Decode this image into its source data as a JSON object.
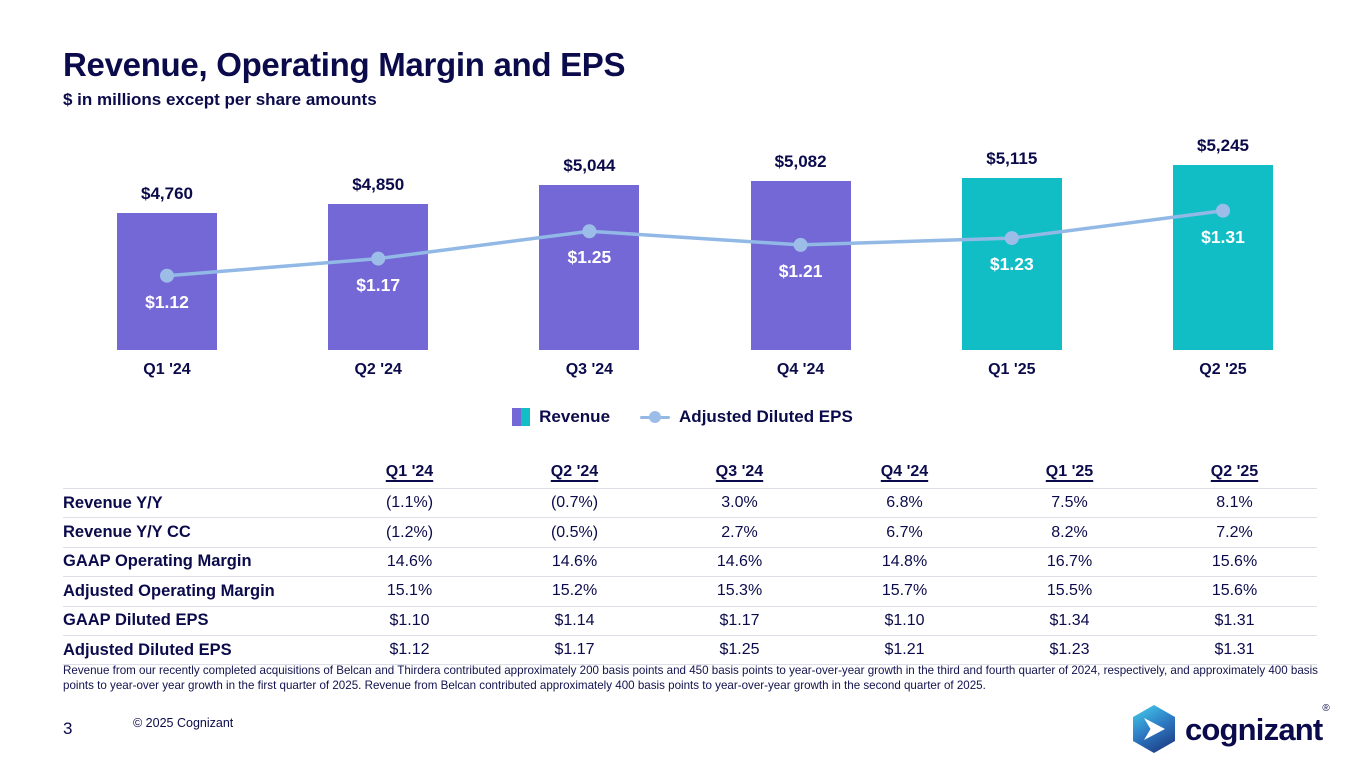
{
  "slide": {
    "title": "Revenue, Operating Margin and EPS",
    "subtitle": "$ in millions except per share amounts",
    "page_number": "3",
    "copyright": "© 2025 Cognizant",
    "footnote": "Revenue from our recently completed acquisitions of Belcan and Thirdera contributed approximately 200 basis points and 450 basis points to year-over-year growth in the third and fourth quarter of 2024, respectively, and approximately 400 basis points to year-over year growth in the first quarter of 2025.  Revenue from Belcan contributed approximately 400 basis points to year-over-year growth in the second quarter of 2025.",
    "logo_text": "cognizant",
    "logo_reg": "®"
  },
  "colors": {
    "navy": "#0b0b4b",
    "purple": "#7468d6",
    "teal": "#12bec6",
    "line": "#92b9e6",
    "dot": "#9dbde9"
  },
  "chart_data": {
    "type": "bar",
    "subtype": "bar+line combo",
    "categories": [
      "Q1 '24",
      "Q2 '24",
      "Q3 '24",
      "Q4 '24",
      "Q1 '25",
      "Q2 '25"
    ],
    "series": [
      {
        "name": "Revenue",
        "type": "bar",
        "values": [
          4760,
          4850,
          5044,
          5082,
          5115,
          5245
        ],
        "labels": [
          "$4,760",
          "$4,850",
          "$5,044",
          "$5,082",
          "$5,115",
          "$5,245"
        ],
        "colors": [
          "#7468d6",
          "#7468d6",
          "#7468d6",
          "#7468d6",
          "#12bec6",
          "#12bec6"
        ]
      },
      {
        "name": "Adjusted Diluted EPS",
        "type": "line",
        "values": [
          1.12,
          1.17,
          1.25,
          1.21,
          1.23,
          1.31
        ],
        "labels": [
          "$1.12",
          "$1.17",
          "$1.25",
          "$1.21",
          "$1.23",
          "$1.31"
        ]
      }
    ],
    "legend": [
      "Revenue",
      "Adjusted Diluted EPS"
    ],
    "legend_position": "bottom",
    "grid": false,
    "axes_shown": false
  },
  "table": {
    "columns": [
      "Q1 '24",
      "Q2 '24",
      "Q3 '24",
      "Q4 '24",
      "Q1 '25",
      "Q2 '25"
    ],
    "rows": [
      {
        "label": "Revenue Y/Y",
        "values": [
          "(1.1%)",
          "(0.7%)",
          "3.0%",
          "6.8%",
          "7.5%",
          "8.1%"
        ]
      },
      {
        "label": "Revenue Y/Y CC",
        "values": [
          "(1.2%)",
          "(0.5%)",
          "2.7%",
          "6.7%",
          "8.2%",
          "7.2%"
        ]
      },
      {
        "label": "GAAP Operating Margin",
        "values": [
          "14.6%",
          "14.6%",
          "14.6%",
          "14.8%",
          "16.7%",
          "15.6%"
        ]
      },
      {
        "label": "Adjusted Operating Margin",
        "values": [
          "15.1%",
          "15.2%",
          "15.3%",
          "15.7%",
          "15.5%",
          "15.6%"
        ]
      },
      {
        "label": "GAAP Diluted EPS",
        "values": [
          "$1.10",
          "$1.14",
          "$1.17",
          "$1.10",
          "$1.34",
          "$1.31"
        ]
      },
      {
        "label": "Adjusted Diluted EPS",
        "values": [
          "$1.12",
          "$1.17",
          "$1.25",
          "$1.21",
          "$1.23",
          "$1.31"
        ]
      }
    ]
  }
}
